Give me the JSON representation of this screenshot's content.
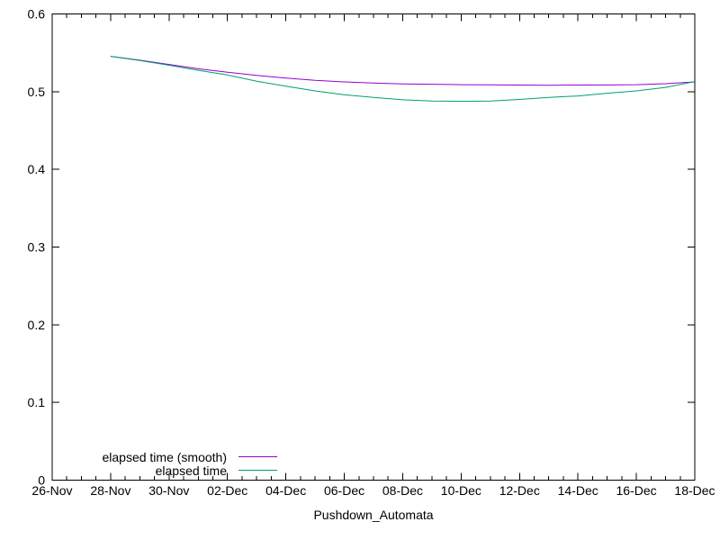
{
  "chart_data": {
    "type": "line",
    "title": "",
    "xlabel": "Pushdown_Automata",
    "ylabel": "",
    "ylim": [
      0,
      0.6
    ],
    "y_ticks": [
      {
        "value": 0.0,
        "label": "0"
      },
      {
        "value": 0.1,
        "label": "0.1"
      },
      {
        "value": 0.2,
        "label": "0.2"
      },
      {
        "value": 0.3,
        "label": "0.3"
      },
      {
        "value": 0.4,
        "label": "0.4"
      },
      {
        "value": 0.5,
        "label": "0.5"
      },
      {
        "value": 0.6,
        "label": "0.6"
      }
    ],
    "x_axis": {
      "range_days": [
        0,
        22
      ],
      "major_ticks": [
        {
          "day": 0,
          "label": "26-Nov"
        },
        {
          "day": 2,
          "label": "28-Nov"
        },
        {
          "day": 4,
          "label": "30-Nov"
        },
        {
          "day": 6,
          "label": "02-Dec"
        },
        {
          "day": 8,
          "label": "04-Dec"
        },
        {
          "day": 10,
          "label": "06-Dec"
        },
        {
          "day": 12,
          "label": "08-Dec"
        },
        {
          "day": 14,
          "label": "10-Dec"
        },
        {
          "day": 16,
          "label": "12-Dec"
        },
        {
          "day": 18,
          "label": "14-Dec"
        },
        {
          "day": 20,
          "label": "16-Dec"
        },
        {
          "day": 22,
          "label": "18-Dec"
        }
      ],
      "minor_tick_step_days": 0.5
    },
    "grid": false,
    "legend": {
      "position": "bottom-left-inside",
      "entries": [
        {
          "label": "elapsed time (smooth)",
          "color": "#9400d3"
        },
        {
          "label": "elapsed time",
          "color": "#009e73"
        }
      ]
    },
    "series": [
      {
        "name": "elapsed time (smooth)",
        "color": "#9400d3",
        "points": [
          [
            2,
            0.5455
          ],
          [
            3,
            0.5405
          ],
          [
            4,
            0.535
          ],
          [
            5,
            0.5295
          ],
          [
            6,
            0.525
          ],
          [
            7,
            0.521
          ],
          [
            8,
            0.5175
          ],
          [
            9,
            0.5145
          ],
          [
            10,
            0.5125
          ],
          [
            11,
            0.511
          ],
          [
            12,
            0.51
          ],
          [
            13,
            0.5095
          ],
          [
            14,
            0.509
          ],
          [
            15,
            0.5088
          ],
          [
            16,
            0.5085
          ],
          [
            17,
            0.5083
          ],
          [
            18,
            0.5085
          ],
          [
            19,
            0.5086
          ],
          [
            20,
            0.509
          ],
          [
            21,
            0.5102
          ],
          [
            22,
            0.5125
          ]
        ]
      },
      {
        "name": "elapsed time",
        "color": "#009e73",
        "points": [
          [
            2,
            0.5455
          ],
          [
            3,
            0.54
          ],
          [
            4,
            0.534
          ],
          [
            5,
            0.5275
          ],
          [
            6,
            0.5215
          ],
          [
            7,
            0.5135
          ],
          [
            8,
            0.507
          ],
          [
            9,
            0.501
          ],
          [
            10,
            0.496
          ],
          [
            11,
            0.4925
          ],
          [
            12,
            0.4895
          ],
          [
            13,
            0.488
          ],
          [
            14,
            0.4875
          ],
          [
            15,
            0.488
          ],
          [
            16,
            0.49
          ],
          [
            17,
            0.4925
          ],
          [
            18,
            0.4945
          ],
          [
            19,
            0.498
          ],
          [
            20,
            0.501
          ],
          [
            21,
            0.5055
          ],
          [
            22,
            0.513
          ]
        ]
      }
    ],
    "colors": {
      "axis": "#000000",
      "text": "#000000",
      "background": "#ffffff"
    }
  }
}
